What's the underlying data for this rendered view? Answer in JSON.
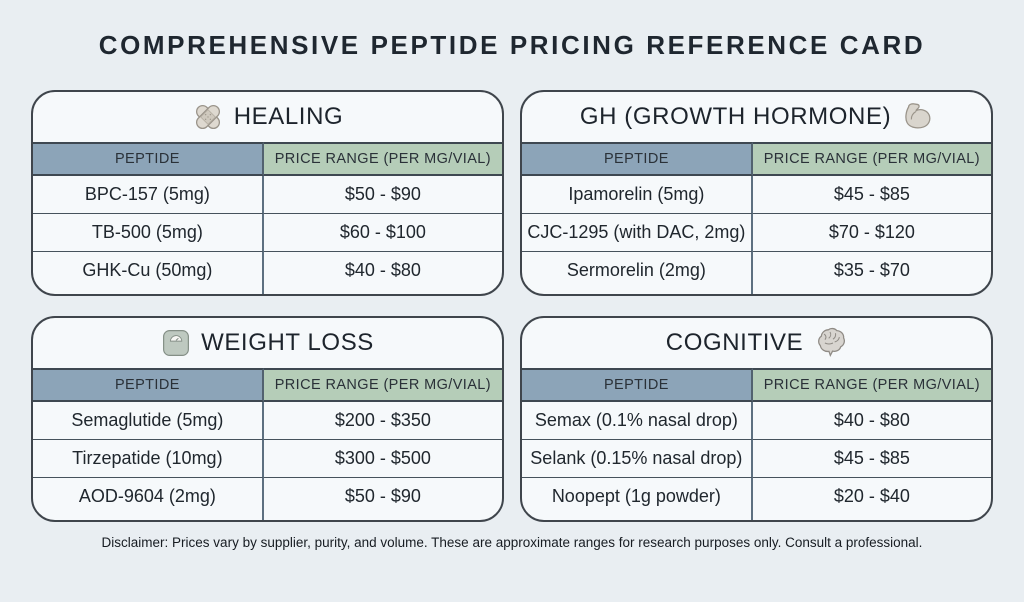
{
  "page": {
    "title": "COMPREHENSIVE PEPTIDE PRICING REFERENCE CARD",
    "disclaimer": "Disclaimer: Prices vary by supplier, purity, and volume. These are approximate ranges for research purposes only. Consult a professional.",
    "background_color": "#e9eef2"
  },
  "columns": {
    "peptide": "PEPTIDE",
    "price_range": "PRICE RANGE (PER MG/VIAL)"
  },
  "colors": {
    "peptide_header_bg": "#8ca4b8",
    "price_header_bg": "#b5cdb8",
    "card_bg": "#f6f9fb",
    "card_border": "#3f454c",
    "row_divider": "#46525c",
    "column_divider": "#5d7080",
    "text": "#20262d"
  },
  "tables": [
    {
      "id": "healing",
      "title": "HEALING",
      "icon": "bandage-icon",
      "icon_position": "before-title",
      "rows": [
        {
          "peptide": "BPC-157 (5mg)",
          "price": "$50 - $90"
        },
        {
          "peptide": "TB-500 (5mg)",
          "price": "$60 - $100"
        },
        {
          "peptide": "GHK-Cu (50mg)",
          "price": "$40 - $80"
        }
      ]
    },
    {
      "id": "gh",
      "title": "GH (GROWTH HORMONE)",
      "icon": "flexed-biceps-icon",
      "icon_position": "after-title",
      "rows": [
        {
          "peptide": "Ipamorelin (5mg)",
          "price": "$45 - $85"
        },
        {
          "peptide": "CJC-1295 (with DAC, 2mg)",
          "price": "$70 - $120"
        },
        {
          "peptide": "Sermorelin (2mg)",
          "price": "$35 - $70"
        }
      ]
    },
    {
      "id": "weight-loss",
      "title": "WEIGHT LOSS",
      "icon": "scale-icon",
      "icon_position": "before-title",
      "rows": [
        {
          "peptide": "Semaglutide (5mg)",
          "price": "$200 - $350"
        },
        {
          "peptide": "Tirzepatide (10mg)",
          "price": "$300 - $500"
        },
        {
          "peptide": "AOD-9604 (2mg)",
          "price": "$50 - $90"
        }
      ]
    },
    {
      "id": "cognitive",
      "title": "COGNITIVE",
      "icon": "brain-icon",
      "icon_position": "after-title",
      "rows": [
        {
          "peptide": "Semax (0.1% nasal drop)",
          "price": "$40 - $80"
        },
        {
          "peptide": "Selank (0.15% nasal drop)",
          "price": "$45 - $85"
        },
        {
          "peptide": "Noopept (1g powder)",
          "price": "$20 - $40"
        }
      ]
    }
  ]
}
